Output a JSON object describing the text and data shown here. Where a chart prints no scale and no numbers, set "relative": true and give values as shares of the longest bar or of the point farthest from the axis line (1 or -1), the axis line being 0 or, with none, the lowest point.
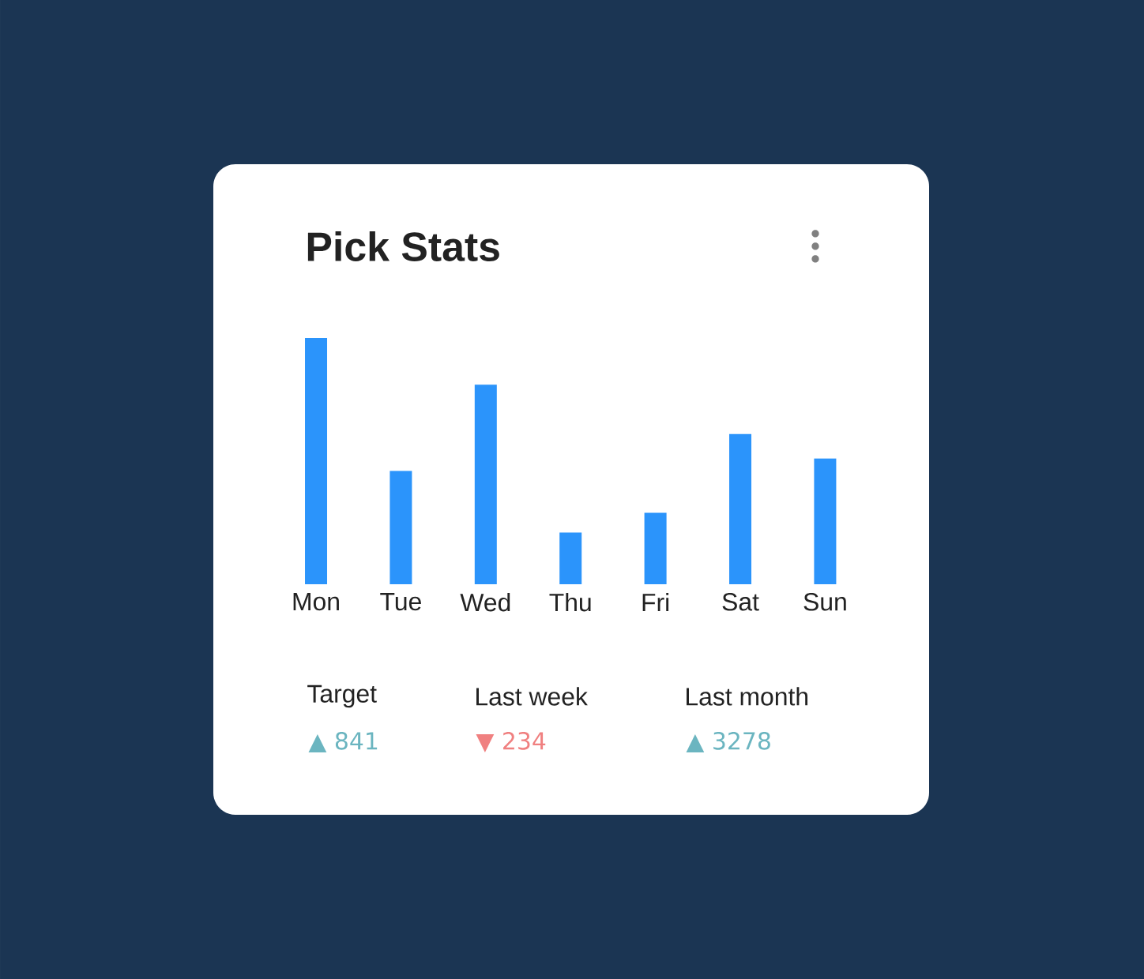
{
  "chart_data": {
    "type": "bar",
    "title": "Pick Stats",
    "relative": true,
    "categories": [
      "Mon",
      "Tue",
      "Wed",
      "Thu",
      "Fri",
      "Sat",
      "Sun"
    ],
    "values": [
      1,
      0.46,
      0.81,
      0.21,
      0.29,
      0.61,
      0.51
    ],
    "color": "#2b94fb",
    "annotations": [
      "Target",
      "▲ 841",
      "Last week",
      "▼ 234",
      "Last month",
      "▲ 3278"
    ]
  }
}
